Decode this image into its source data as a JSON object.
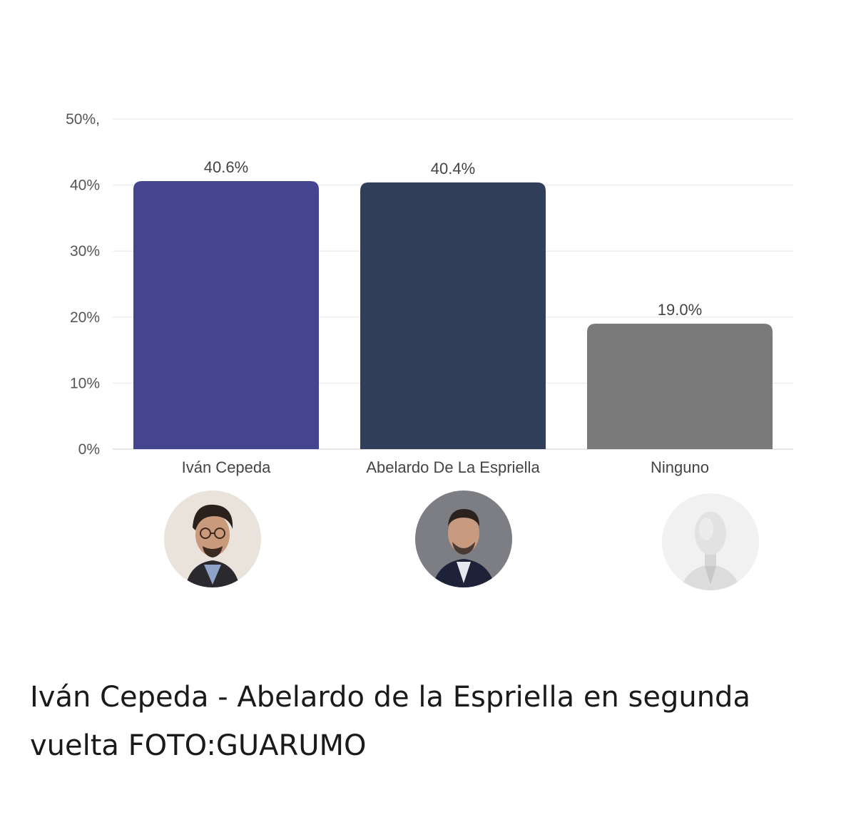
{
  "chart_data": {
    "type": "bar",
    "categories": [
      "Iván Cepeda",
      "Abelardo De La Espriella",
      "Ninguno"
    ],
    "values": [
      40.6,
      40.4,
      19.0
    ],
    "value_labels": [
      "40.6%",
      "40.4%",
      "19.0%"
    ],
    "colors": [
      "#45448e",
      "#313f5a",
      "#7a7a7a"
    ],
    "yticks": [
      0,
      10,
      20,
      30,
      40,
      50
    ],
    "ytick_labels": [
      "0%",
      "10%",
      "20%",
      "30%",
      "40%",
      "50%,"
    ],
    "ylim": [
      0,
      50
    ],
    "grid": true,
    "title": "",
    "xlabel": "",
    "ylabel": ""
  },
  "avatars": [
    {
      "name": "Iván Cepeda",
      "icon": "cepeda-photo-icon"
    },
    {
      "name": "Abelardo De La Espriella",
      "icon": "espriella-photo-icon"
    },
    {
      "name": "Ninguno",
      "icon": "faceless-mannequin-icon"
    }
  ],
  "caption": "Iván Cepeda - Abelardo de la Espriella en segunda vuelta FOTO:GUARUMO"
}
